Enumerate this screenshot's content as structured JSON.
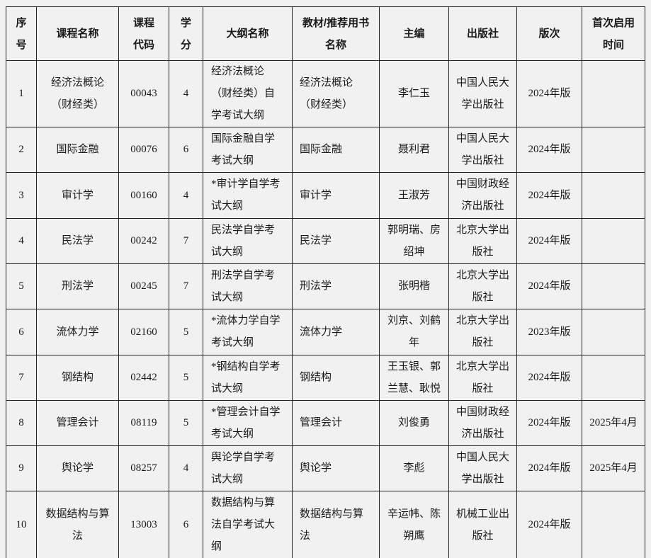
{
  "page": {
    "background": "#f1f1f1",
    "border_color": "#222222",
    "text_color": "#1a1a1a"
  },
  "table": {
    "headers": [
      "序号",
      "课程名称",
      "课程代码",
      "学分",
      "大纲名称",
      "教材/推荐用书名称",
      "主编",
      "出版社",
      "版次",
      "首次启用时间"
    ],
    "rows": [
      {
        "cells": [
          "1",
          "经济法概论（财经类）",
          "00043",
          "4",
          "经济法概论（财经类）自学考试大纲",
          "经济法概论（财经类）",
          "李仁玉",
          "中国人民大学出版社",
          "2024年版",
          ""
        ]
      },
      {
        "cells": [
          "2",
          "国际金融",
          "00076",
          "6",
          "国际金融自学考试大纲",
          "国际金融",
          "聂利君",
          "中国人民大学出版社",
          "2024年版",
          ""
        ]
      },
      {
        "cells": [
          "3",
          "审计学",
          "00160",
          "4",
          "*审计学自学考试大纲",
          "审计学",
          "王淑芳",
          "中国财政经济出版社",
          "2024年版",
          ""
        ]
      },
      {
        "cells": [
          "4",
          "民法学",
          "00242",
          "7",
          "民法学自学考试大纲",
          "民法学",
          "郭明瑞、房绍坤",
          "北京大学出版社",
          "2024年版",
          ""
        ]
      },
      {
        "cells": [
          "5",
          "刑法学",
          "00245",
          "7",
          "刑法学自学考试大纲",
          "刑法学",
          "张明楷",
          "北京大学出版社",
          "2024年版",
          ""
        ]
      },
      {
        "cells": [
          "6",
          "流体力学",
          "02160",
          "5",
          "*流体力学自学考试大纲",
          "流体力学",
          "刘京、刘鹤年",
          "北京大学出版社",
          "2023年版",
          ""
        ]
      },
      {
        "cells": [
          "7",
          "钢结构",
          "02442",
          "5",
          "*钢结构自学考试大纲",
          "钢结构",
          "王玉银、郭兰慧、耿悦",
          "北京大学出版社",
          "2024年版",
          ""
        ]
      },
      {
        "cells": [
          "8",
          "管理会计",
          "08119",
          "5",
          "*管理会计自学考试大纲",
          "管理会计",
          "刘俊勇",
          "中国财政经济出版社",
          "2024年版",
          "2025年4月"
        ]
      },
      {
        "cells": [
          "9",
          "舆论学",
          "08257",
          "4",
          "舆论学自学考试大纲",
          "舆论学",
          "李彪",
          "中国人民大学出版社",
          "2024年版",
          "2025年4月"
        ]
      },
      {
        "cells": [
          "10",
          "数据结构与算法",
          "13003",
          "6",
          "数据结构与算法自学考试大纲",
          "数据结构与算法",
          "辛运帏、陈朔鹰",
          "机械工业出版社",
          "2024年版",
          ""
        ]
      }
    ]
  }
}
